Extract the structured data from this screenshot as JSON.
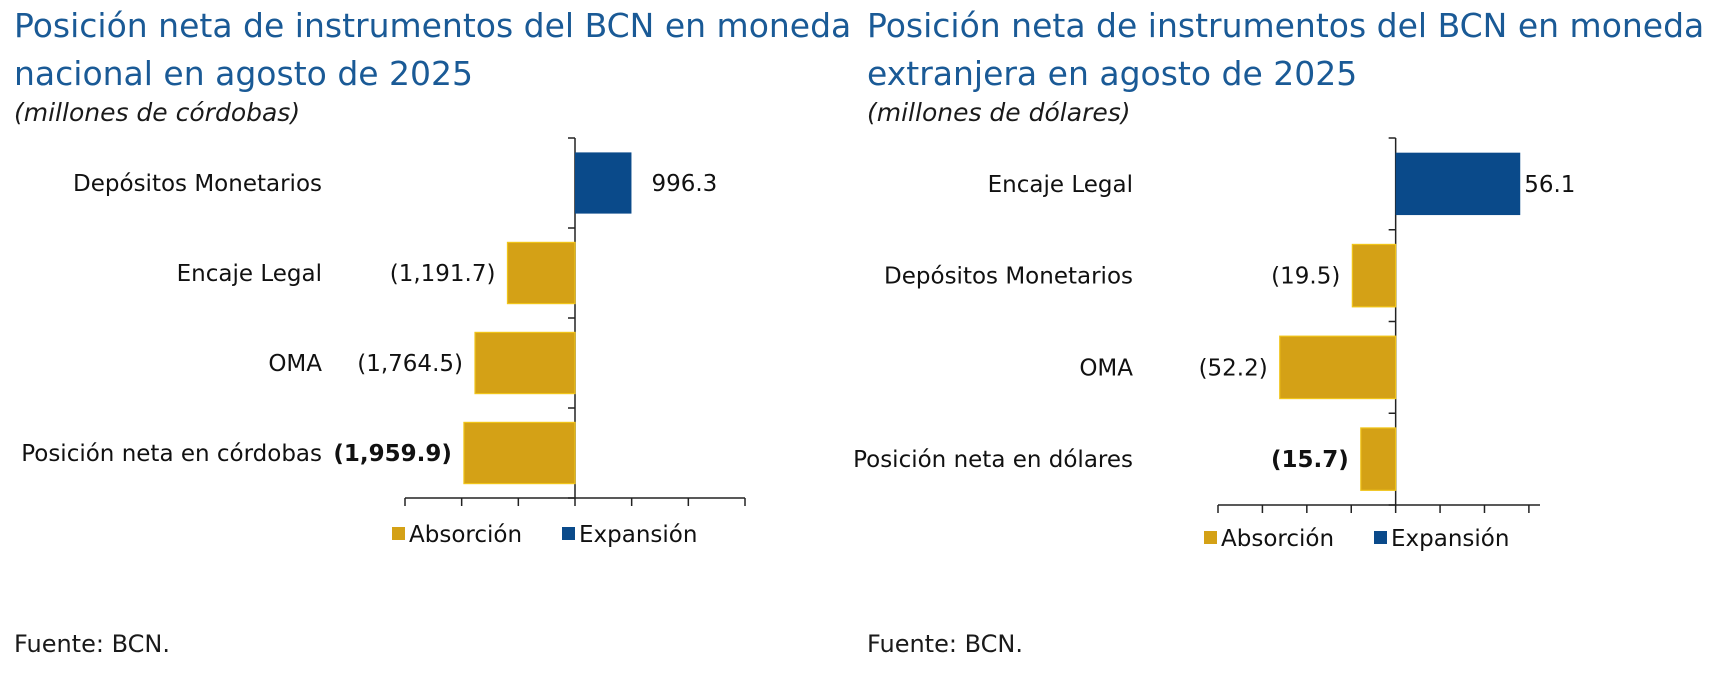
{
  "colors": {
    "absorcion": "#d4a116",
    "expansion": "#0a4a8a",
    "title": "#1a5a96"
  },
  "chart_data": [
    {
      "type": "bar",
      "orientation": "horizontal",
      "title": "Posición neta de instrumentos del BCN en moneda nacional en agosto de 2025",
      "title_lines": [
        "Posición neta de instrumentos del BCN en moneda",
        "nacional en agosto de 2025"
      ],
      "subtitle": "(millones de córdobas)",
      "categories": [
        "Depósitos Monetarios",
        "Encaje Legal",
        "OMA",
        "Posición neta en córdobas"
      ],
      "values": [
        996.3,
        -1191.7,
        -1764.5,
        -1959.9
      ],
      "data_labels": [
        "996.3",
        "(1,191.7)",
        "(1,764.5)",
        "(1,959.9)"
      ],
      "bold_label_index": 3,
      "xlim": [
        -3000,
        3000
      ],
      "tick_step": 1000,
      "legend": [
        {
          "name": "Absorción",
          "color_key": "absorcion"
        },
        {
          "name": "Expansión",
          "color_key": "expansion"
        }
      ],
      "source": "Fuente: BCN."
    },
    {
      "type": "bar",
      "orientation": "horizontal",
      "title": "Posición neta de instrumentos del BCN en moneda extranjera en agosto de 2025",
      "title_lines": [
        "Posición neta de instrumentos del BCN en moneda",
        "extranjera en agosto de 2025"
      ],
      "subtitle": "(millones de dólares)",
      "categories": [
        "Encaje Legal",
        "Depósitos Monetarios",
        "OMA",
        "Posición neta en dólares"
      ],
      "values": [
        56.1,
        -19.5,
        -52.2,
        -15.7
      ],
      "data_labels": [
        "56.1",
        "(19.5)",
        "(52.2)",
        "(15.7)"
      ],
      "bold_label_index": 3,
      "xlim": [
        -80,
        65
      ],
      "tick_step": 20,
      "legend": [
        {
          "name": "Absorción",
          "color_key": "absorcion"
        },
        {
          "name": "Expansión",
          "color_key": "expansion"
        }
      ],
      "source": "Fuente: BCN."
    }
  ]
}
